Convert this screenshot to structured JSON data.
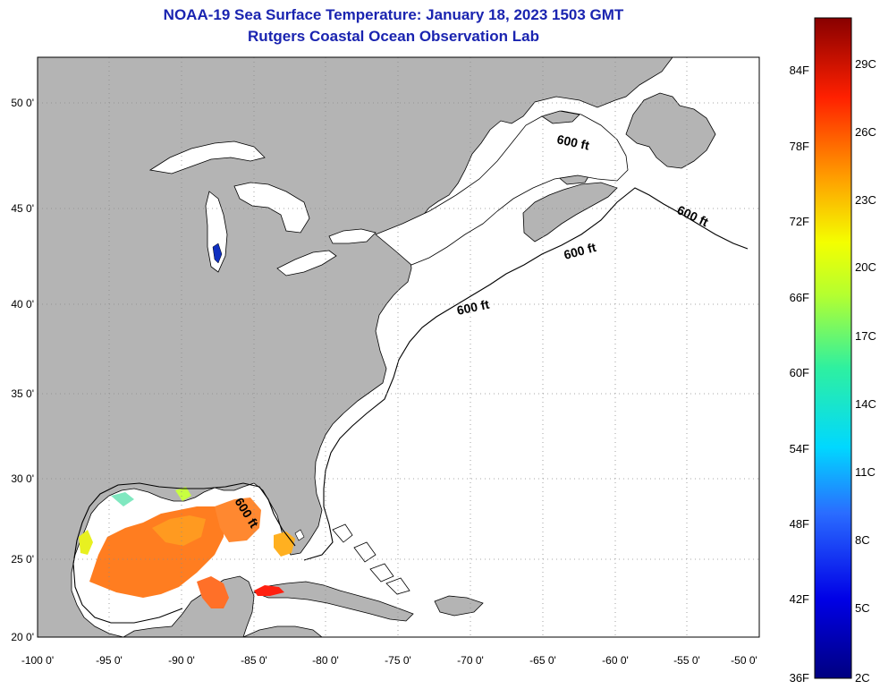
{
  "title_line1": "NOAA-19 Sea Surface Temperature:  January 18, 2023 1503 GMT",
  "title_line2": "Rutgers Coastal Ocean Observation Lab",
  "map": {
    "lon_ticks": [
      "-100 0'",
      "-95 0'",
      "-90 0'",
      "-85 0'",
      "-80 0'",
      "-75 0'",
      "-70 0'",
      "-65 0'",
      "-60 0'",
      "-55 0'",
      "-50 0'"
    ],
    "lat_ticks": [
      "50 0'",
      "45 0'",
      "40 0'",
      "35 0'",
      "30 0'",
      "25 0'",
      "20 0'"
    ],
    "contour_labels": [
      "600 ft",
      "600 ft",
      "600 ft",
      "600 ft",
      "600 ft"
    ],
    "colors": {
      "land": "#b4b4b4",
      "water": "#ffffff",
      "grid": "#808080",
      "contour": "#000000"
    }
  },
  "colorbar": {
    "fahrenheit_labels": [
      "84F",
      "78F",
      "72F",
      "66F",
      "60F",
      "54F",
      "48F",
      "42F",
      "36F"
    ],
    "celsius_labels": [
      "29C",
      "26C",
      "23C",
      "20C",
      "17C",
      "14C",
      "11C",
      "8C",
      "5C",
      "2C"
    ]
  }
}
